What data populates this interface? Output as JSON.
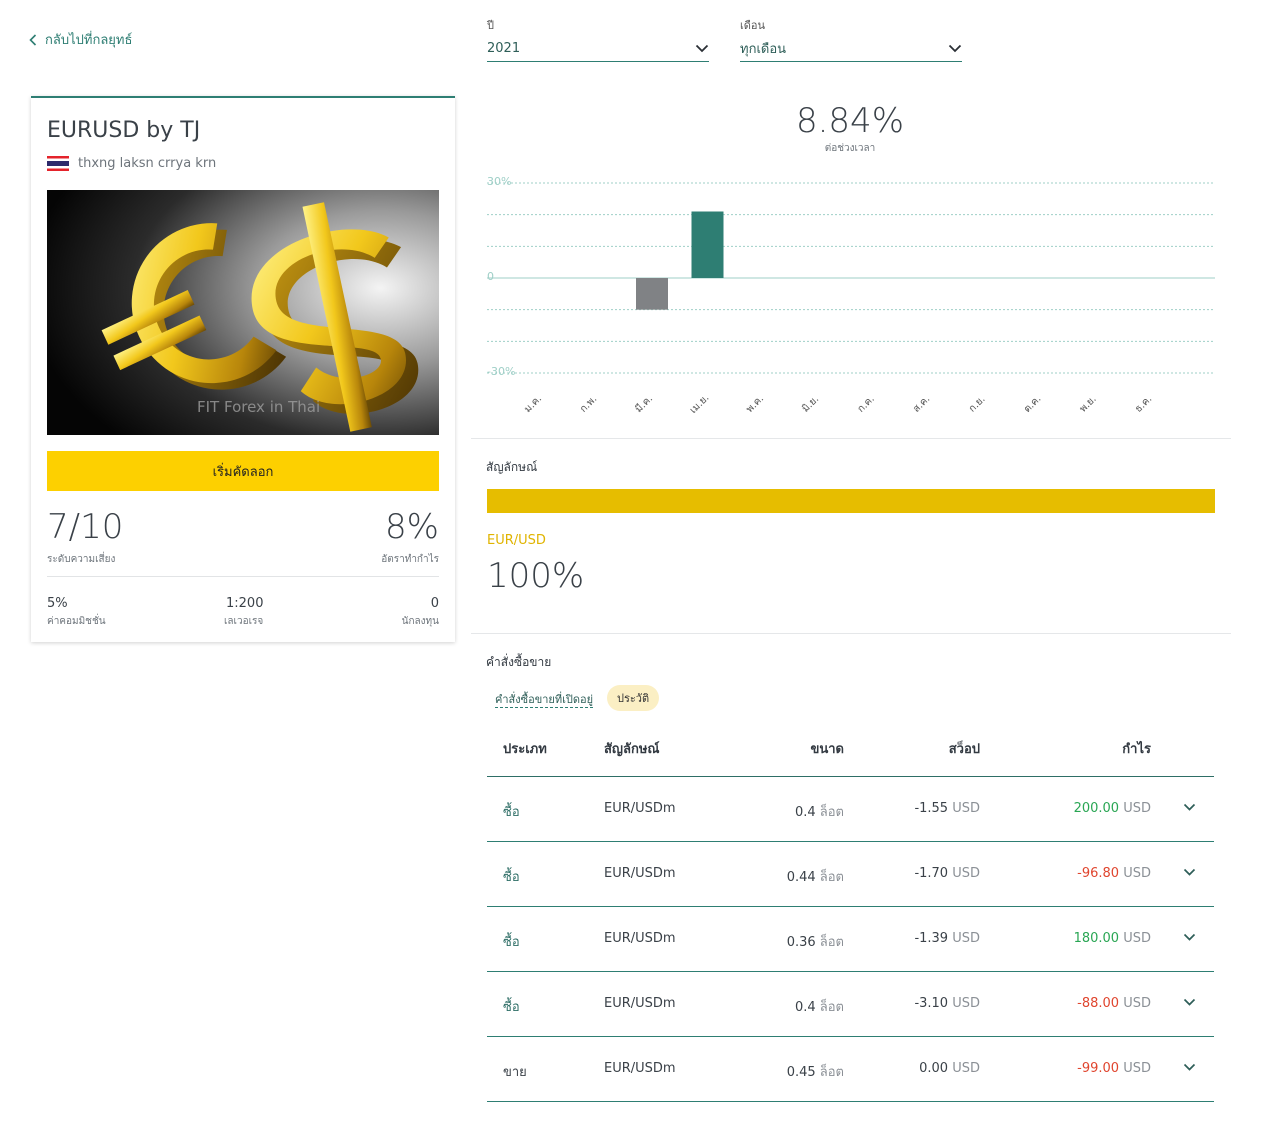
{
  "back_link": {
    "label": "กลับไปที่กลยุทธ์"
  },
  "strategy": {
    "title": "EURUSD by TJ",
    "subtitle": "thxng laksn crrya krn",
    "image_watermark": "FIT Forex in Thai",
    "copy_button": "เริ่มคัดลอก",
    "risk": {
      "value": "7/10",
      "label": "ระดับความเสี่ยง"
    },
    "profit_rate": {
      "value": "8%",
      "label": "อัตราทำกำไร"
    },
    "commission": {
      "value": "5%",
      "label": "ค่าคอมมิชชั่น"
    },
    "leverage": {
      "value": "1:200",
      "label": "เลเวอเรจ"
    },
    "investors": {
      "value": "0",
      "label": "นักลงทุน"
    }
  },
  "filters": {
    "year_label": "ปี",
    "year_value": "2021",
    "month_label": "เดือน",
    "month_value": "ทุกเดือน"
  },
  "chart_data": {
    "type": "bar",
    "total": "8.84%",
    "total_label": "ต่อช่วงเวลา",
    "categories": [
      "ม.ค.",
      "ก.พ.",
      "มี.ค.",
      "เม.ย.",
      "พ.ค.",
      "มิ.ย.",
      "ก.ค.",
      "ส.ค.",
      "ก.ย.",
      "ต.ค.",
      "พ.ย.",
      "ธ.ค."
    ],
    "values": [
      0,
      0,
      -10,
      21,
      0,
      0,
      0,
      0,
      0,
      0,
      0,
      0
    ],
    "ylim": [
      -30,
      30
    ],
    "ytick_labels": [
      "30%",
      "0",
      "-30%"
    ],
    "colors": {
      "positive": "#2e7e73",
      "negative": "#808285",
      "grid": "#9fcfc7"
    }
  },
  "symbols": {
    "label": "สัญลักษณ์",
    "items": [
      {
        "name": "EUR/USD",
        "percent": "100%",
        "color": "#e6bd00"
      }
    ]
  },
  "orders": {
    "label": "คำสั่งซื้อขาย",
    "tabs": {
      "open": "คำสั่งซื้อขายที่เปิดอยู่",
      "history": "ประวัติ"
    },
    "headers": {
      "type": "ประเภท",
      "symbol": "สัญลักษณ์",
      "size": "ขนาด",
      "swap": "สว็อป",
      "profit": "กำไร"
    },
    "rows": [
      {
        "type": "ซื้อ",
        "symbol": "EUR/USDm",
        "size": "0.4",
        "size_unit": "ล็อต",
        "swap": "-1.55",
        "swap_unit": "USD",
        "profit": "200.00",
        "profit_unit": "USD",
        "profit_sign": "pos"
      },
      {
        "type": "ซื้อ",
        "symbol": "EUR/USDm",
        "size": "0.44",
        "size_unit": "ล็อต",
        "swap": "-1.70",
        "swap_unit": "USD",
        "profit": "-96.80",
        "profit_unit": "USD",
        "profit_sign": "neg"
      },
      {
        "type": "ซื้อ",
        "symbol": "EUR/USDm",
        "size": "0.36",
        "size_unit": "ล็อต",
        "swap": "-1.39",
        "swap_unit": "USD",
        "profit": "180.00",
        "profit_unit": "USD",
        "profit_sign": "pos"
      },
      {
        "type": "ซื้อ",
        "symbol": "EUR/USDm",
        "size": "0.4",
        "size_unit": "ล็อต",
        "swap": "-3.10",
        "swap_unit": "USD",
        "profit": "-88.00",
        "profit_unit": "USD",
        "profit_sign": "neg"
      },
      {
        "type": "ขาย",
        "symbol": "EUR/USDm",
        "size": "0.45",
        "size_unit": "ล็อต",
        "swap": "0.00",
        "swap_unit": "USD",
        "profit": "-99.00",
        "profit_unit": "USD",
        "profit_sign": "neg"
      }
    ]
  }
}
